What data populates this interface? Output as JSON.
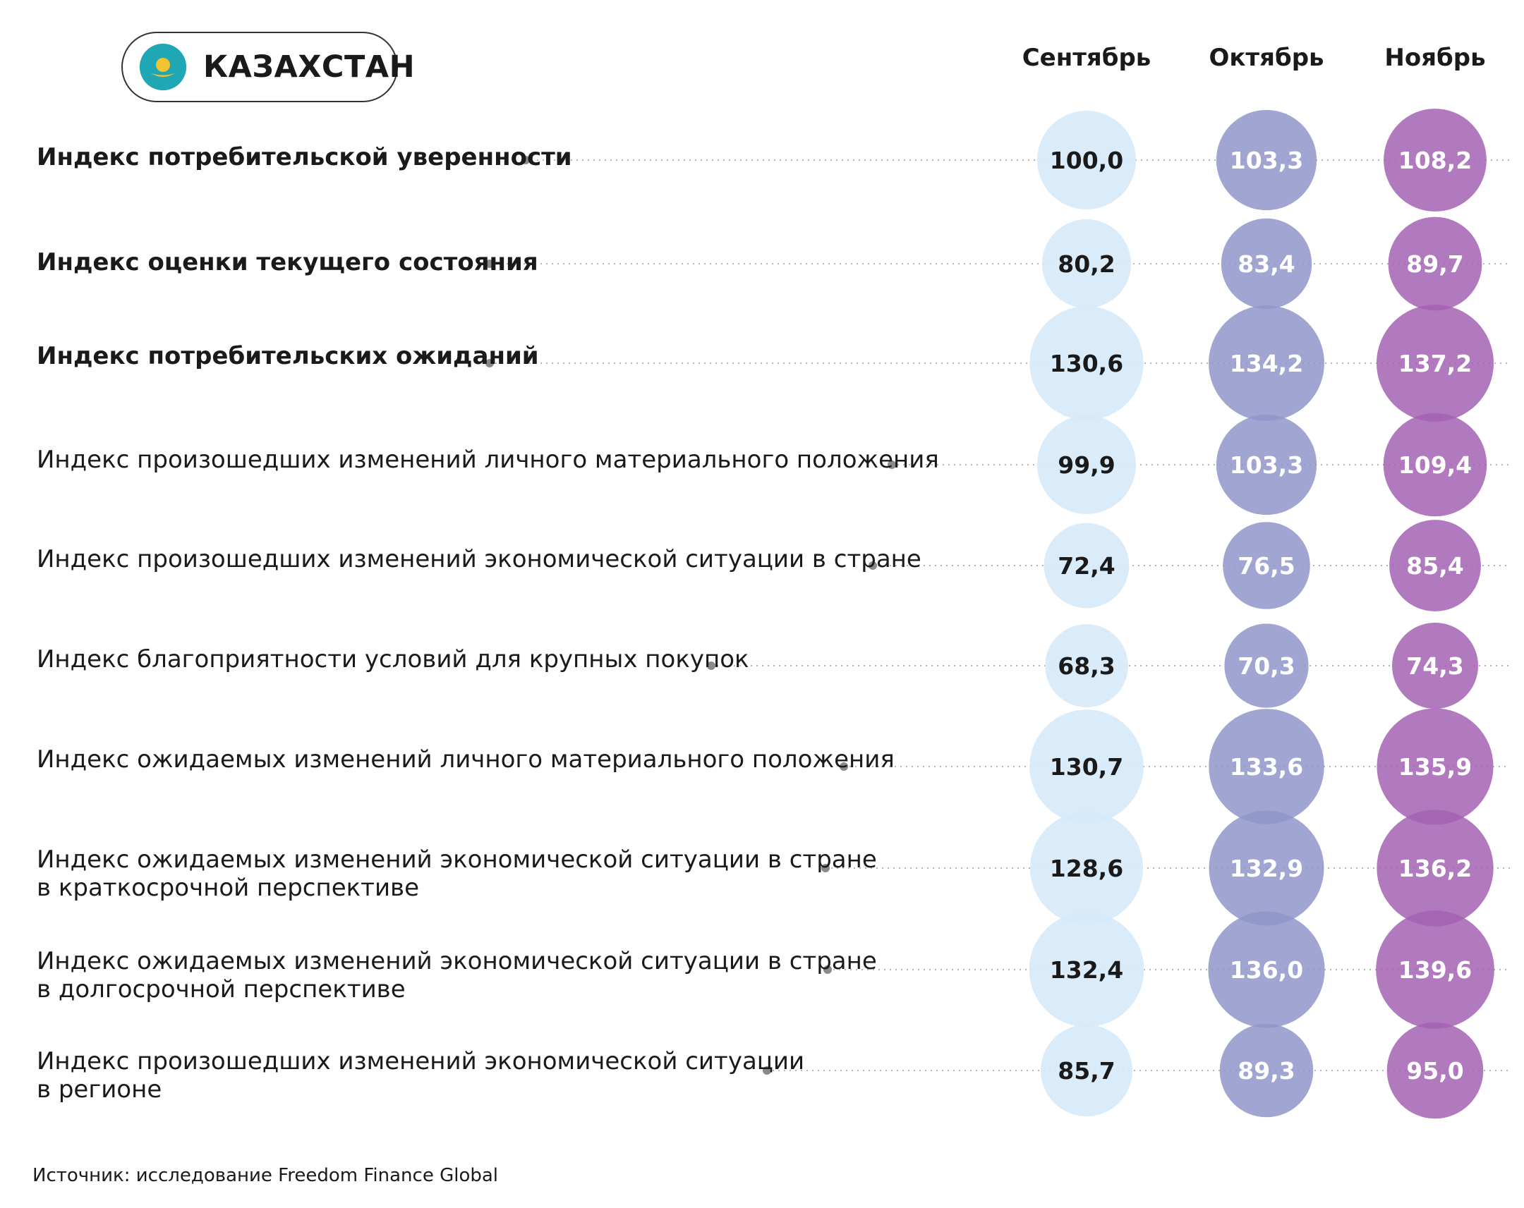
{
  "header": {
    "country": "КАЗАХСТАН",
    "flag_icon": "kazakhstan-flag-icon",
    "flag_color": "#1fa7b5",
    "flag_emblem_color": "#f2c230"
  },
  "months": [
    "Сентябрь",
    "Октябрь",
    "Ноябрь"
  ],
  "rows": [
    {
      "label_lines": [
        "Индекс потребительской уверенности"
      ],
      "bold": true,
      "values": [
        "100,0",
        "103,3",
        "108,2"
      ]
    },
    {
      "label_lines": [
        "Индекс оценки текущего состояния"
      ],
      "bold": true,
      "values": [
        "80,2",
        "83,4",
        "89,7"
      ]
    },
    {
      "label_lines": [
        "Индекс потребительских ожиданий"
      ],
      "bold": true,
      "values": [
        "130,6",
        "134,2",
        "137,2"
      ]
    },
    {
      "label_lines": [
        "Индекс произошедших изменений личного материального положения"
      ],
      "bold": false,
      "values": [
        "99,9",
        "103,3",
        "109,4"
      ]
    },
    {
      "label_lines": [
        "Индекс произошедших изменений экономической ситуации в стране"
      ],
      "bold": false,
      "values": [
        "72,4",
        "76,5",
        "85,4"
      ]
    },
    {
      "label_lines": [
        "Индекс благоприятности условий для крупных покупок"
      ],
      "bold": false,
      "values": [
        "68,3",
        "70,3",
        "74,3"
      ]
    },
    {
      "label_lines": [
        "Индекс ожидаемых изменений личного материального положения"
      ],
      "bold": false,
      "values": [
        "130,7",
        "133,6",
        "135,9"
      ]
    },
    {
      "label_lines": [
        "Индекс ожидаемых изменений экономической ситуации в стране",
        "в краткосрочной перспективе"
      ],
      "bold": false,
      "values": [
        "128,6",
        "132,9",
        "136,2"
      ]
    },
    {
      "label_lines": [
        "Индекс ожидаемых изменений экономической ситуации в стране",
        "в долгосрочной перспективе"
      ],
      "bold": false,
      "values": [
        "132,4",
        "136,0",
        "139,6"
      ]
    },
    {
      "label_lines": [
        "Индекс произошедших изменений экономической ситуации",
        "в регионе"
      ],
      "bold": false,
      "values": [
        "85,7",
        "89,3",
        "95,0"
      ]
    }
  ],
  "source": "Источник: исследование Freedom Finance Global",
  "chart_data": {
    "type": "bubble-table",
    "categories": [
      "Индекс потребительской уверенности",
      "Индекс оценки текущего состояния",
      "Индекс потребительских ожиданий",
      "Индекс произошедших изменений личного материального положения",
      "Индекс произошедших изменений экономической ситуации в стране",
      "Индекс благоприятности условий для крупных покупок",
      "Индекс ожидаемых изменений личного материального положения",
      "Индекс ожидаемых изменений экономической ситуации в стране в краткосрочной перспективе",
      "Индекс ожидаемых изменений экономической ситуации в стране в долгосрочной перспективе",
      "Индекс произошедших изменений экономической ситуации в регионе"
    ],
    "series": [
      {
        "name": "Сентябрь",
        "color": "#d6eaf8",
        "text_color": "#1a1a1a",
        "values": [
          100.0,
          80.2,
          130.6,
          99.9,
          72.4,
          68.3,
          130.7,
          128.6,
          132.4,
          85.7
        ]
      },
      {
        "name": "Октябрь",
        "color": "#8f97c9",
        "text_color": "#ffffff",
        "values": [
          103.3,
          83.4,
          134.2,
          103.3,
          76.5,
          70.3,
          133.6,
          132.9,
          136.0,
          89.3
        ]
      },
      {
        "name": "Ноябрь",
        "color": "#a361b3",
        "text_color": "#ffffff",
        "values": [
          108.2,
          89.7,
          137.2,
          109.4,
          85.4,
          74.3,
          135.9,
          136.2,
          139.6,
          95.0
        ]
      }
    ]
  }
}
